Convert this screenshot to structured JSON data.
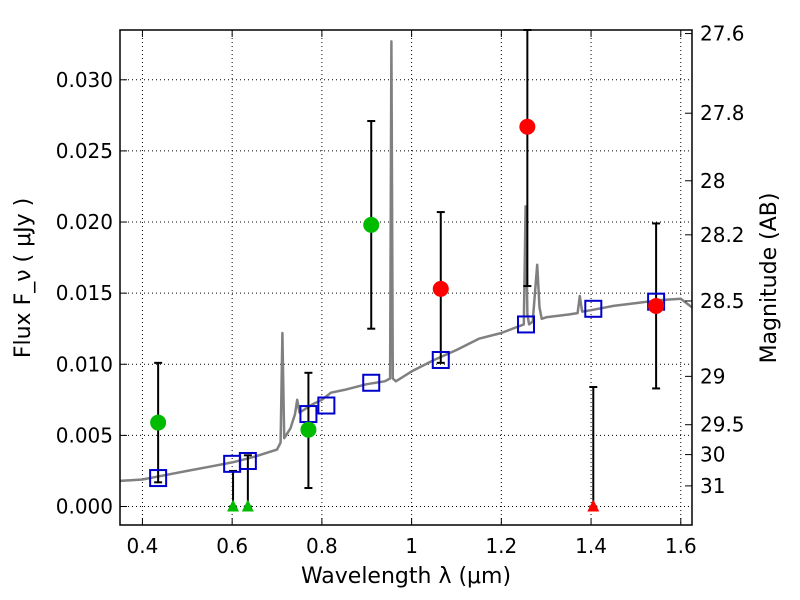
{
  "chart_data": {
    "type": "scatter",
    "title": "",
    "xlabel": "Wavelength  λ (μm)",
    "ylabel": "Flux  F_ν  ( μJy )",
    "y2label": "Magnitude (AB)",
    "xlim": [
      0.35,
      1.625
    ],
    "ylim": [
      -0.0013,
      0.0335
    ],
    "grid": true,
    "legend": "none",
    "x_ticks": [
      0.4,
      0.6,
      0.8,
      1.0,
      1.2,
      1.4,
      1.6
    ],
    "x_tick_labels": [
      "0.4",
      "0.6",
      "0.8",
      "1",
      "1.2",
      "1.4",
      "1.6"
    ],
    "y_ticks": [
      0.0,
      0.005,
      0.01,
      0.015,
      0.02,
      0.025,
      0.03
    ],
    "y_tick_labels": [
      "0.000",
      "0.005",
      "0.010",
      "0.015",
      "0.020",
      "0.025",
      "0.030"
    ],
    "magnitude_ticks": [
      {
        "label": "27.6",
        "flux": 0.03325
      },
      {
        "label": "27.8",
        "flux": 0.02765
      },
      {
        "label": "28",
        "flux": 0.0229
      },
      {
        "label": "28.2",
        "flux": 0.0191
      },
      {
        "label": "28.5",
        "flux": 0.01445
      },
      {
        "label": "29",
        "flux": 0.00915
      },
      {
        "label": "29.5",
        "flux": 0.00575
      },
      {
        "label": "30",
        "flux": 0.00365
      },
      {
        "label": "31",
        "flux": 0.00145
      }
    ],
    "colors": {
      "template": "#808080",
      "model_box": "#0000cc",
      "red_points": "#ff0000",
      "green_points": "#00bb00",
      "error_bars": "#000000"
    },
    "template_spectrum": {
      "name": "",
      "x": [
        0.35,
        0.4,
        0.45,
        0.5,
        0.55,
        0.6,
        0.65,
        0.7,
        0.708,
        0.712,
        0.716,
        0.73,
        0.74,
        0.745,
        0.75,
        0.76,
        0.78,
        0.8,
        0.82,
        0.85,
        0.9,
        0.94,
        0.952,
        0.955,
        0.958,
        0.965,
        1.0,
        1.05,
        1.1,
        1.15,
        1.2,
        1.25,
        1.254,
        1.258,
        1.262,
        1.27,
        1.28,
        1.285,
        1.29,
        1.3,
        1.35,
        1.37,
        1.375,
        1.38,
        1.4,
        1.45,
        1.5,
        1.55,
        1.6,
        1.625
      ],
      "y": [
        0.0018,
        0.0019,
        0.0022,
        0.0025,
        0.0028,
        0.0031,
        0.0035,
        0.004,
        0.0045,
        0.0122,
        0.0048,
        0.0055,
        0.0065,
        0.0075,
        0.0066,
        0.0068,
        0.0072,
        0.0075,
        0.008,
        0.0082,
        0.0086,
        0.0088,
        0.009,
        0.0327,
        0.009,
        0.0088,
        0.0095,
        0.0103,
        0.011,
        0.0118,
        0.0122,
        0.0128,
        0.0211,
        0.0135,
        0.0128,
        0.013,
        0.017,
        0.014,
        0.0132,
        0.0133,
        0.0135,
        0.0136,
        0.0148,
        0.0137,
        0.0138,
        0.0141,
        0.0143,
        0.0145,
        0.0146,
        0.014
      ]
    },
    "model_bands": {
      "name": "",
      "x": [
        0.435,
        0.6,
        0.635,
        0.77,
        0.81,
        0.91,
        1.065,
        1.255,
        1.405,
        1.545
      ],
      "y": [
        0.002,
        0.003,
        0.0032,
        0.0065,
        0.0071,
        0.0087,
        0.0103,
        0.0128,
        0.0139,
        0.0144
      ]
    },
    "detections_red": {
      "name": "",
      "x": [
        1.065,
        1.258,
        1.545
      ],
      "y": [
        0.0153,
        0.0267,
        0.0141
      ],
      "yerr_low": [
        0.0101,
        0.0155,
        0.0083
      ],
      "yerr_high": [
        0.0207,
        0.0335,
        0.0199
      ]
    },
    "detections_green": {
      "name": "",
      "x": [
        0.435,
        0.77,
        0.91
      ],
      "y": [
        0.0059,
        0.0054,
        0.0198
      ],
      "yerr_low": [
        0.0017,
        0.0013,
        0.0125
      ],
      "yerr_high": [
        0.0101,
        0.0094,
        0.0271
      ]
    },
    "upper_limits_green": {
      "name": "",
      "x": [
        0.602,
        0.635
      ],
      "y": [
        0.0,
        0.0
      ],
      "yerr_high": [
        0.0025,
        0.0036
      ]
    },
    "upper_limits_red": {
      "name": "",
      "x": [
        1.405
      ],
      "y": [
        0.0
      ],
      "yerr_high": [
        0.0084
      ]
    }
  }
}
